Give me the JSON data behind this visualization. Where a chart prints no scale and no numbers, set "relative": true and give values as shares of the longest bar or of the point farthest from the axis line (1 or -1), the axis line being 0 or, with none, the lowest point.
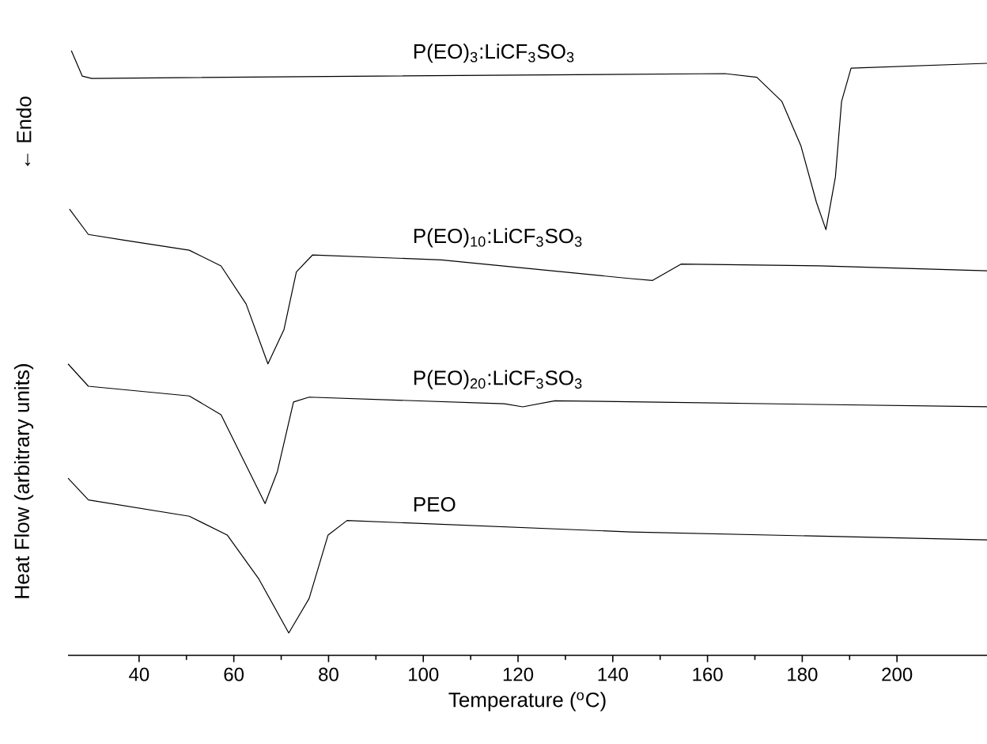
{
  "chart_data": {
    "type": "line",
    "relative": true,
    "xlabel": "Temperature ($^{o}$C)",
    "ylabel": "Heat Flow (arbitrary units)",
    "annotations": [
      "← Endo"
    ],
    "xlim": [
      25,
      219
    ],
    "xticks": [
      40,
      60,
      80,
      100,
      120,
      140,
      160,
      180,
      200
    ],
    "tick_labels": "x",
    "grid": false,
    "series": [
      {
        "name": "P(EO)$_{3}$:LiCF$_{3}$SO$_{3}$",
        "color": "#000000",
        "x": [
          25.7,
          28,
          30,
          90.5,
          163.7,
          170.4,
          175.7,
          179.7,
          183,
          185,
          187,
          188.3,
          190.3,
          219
        ],
        "values": [
          1.0,
          0.958,
          0.954,
          0.958,
          0.962,
          0.956,
          0.916,
          0.843,
          0.749,
          0.704,
          0.791,
          0.916,
          0.971,
          0.979
        ]
      },
      {
        "name": "P(EO)$_{10}$:LiCF$_{3}$SO$_{3}$",
        "color": "#000000",
        "x": [
          25.3,
          29.3,
          37.3,
          50.6,
          57.3,
          62.6,
          67.2,
          70.6,
          73.2,
          76.6,
          103.8,
          143.8,
          148.4,
          154.4,
          183.7,
          219
        ],
        "values": [
          0.738,
          0.696,
          0.686,
          0.67,
          0.644,
          0.581,
          0.482,
          0.539,
          0.634,
          0.662,
          0.654,
          0.623,
          0.62,
          0.647,
          0.644,
          0.636
        ]
      },
      {
        "name": "P(EO)$_{20}$:LiCF$_{3}$SO$_{3}$",
        "color": "#000000",
        "x": [
          25,
          29.3,
          50.6,
          57.3,
          62.6,
          66.6,
          69.2,
          72.6,
          75.9,
          117.1,
          121,
          127.8,
          219
        ],
        "values": [
          0.482,
          0.445,
          0.429,
          0.398,
          0.314,
          0.251,
          0.304,
          0.419,
          0.427,
          0.416,
          0.411,
          0.421,
          0.411
        ]
      },
      {
        "name": "PEO",
        "color": "#000000",
        "x": [
          25,
          29.3,
          50.6,
          58.6,
          65.3,
          71.6,
          75.9,
          79.9,
          83.9,
          143.8,
          219
        ],
        "values": [
          0.293,
          0.257,
          0.23,
          0.199,
          0.126,
          0.037,
          0.094,
          0.199,
          0.223,
          0.204,
          0.191
        ]
      }
    ]
  }
}
